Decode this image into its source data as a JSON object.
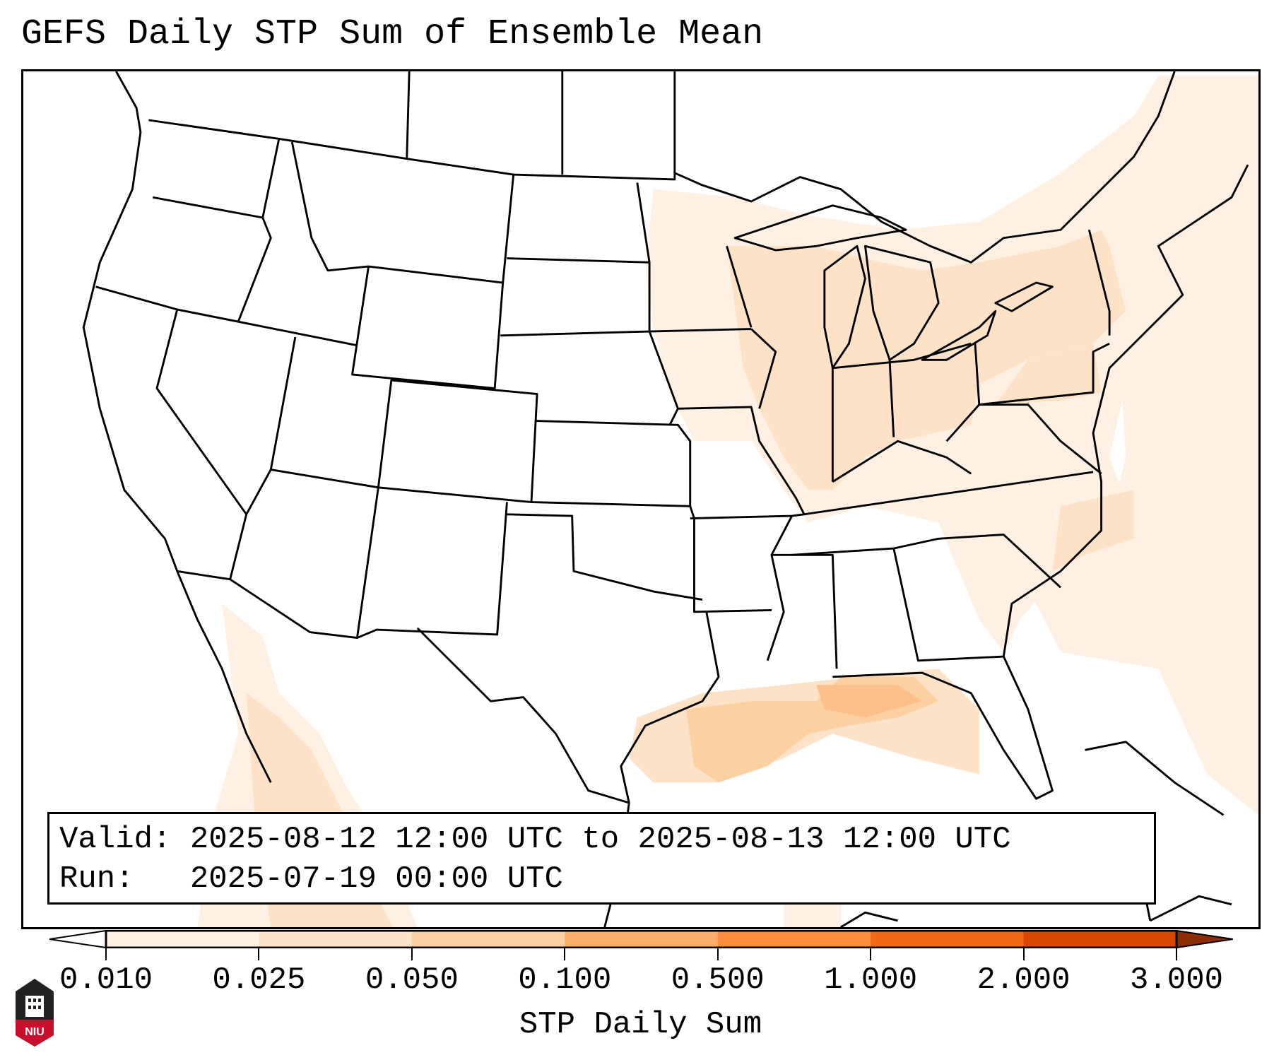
{
  "title": "GEFS Daily STP Sum of Ensemble Mean",
  "info": {
    "valid_label": "Valid:",
    "valid_value": "2025-08-12 12:00 UTC to 2025-08-13 12:00 UTC",
    "run_label": "Run:",
    "run_value": "2025-07-19 00:00 UTC"
  },
  "colorbar": {
    "label": "STP Daily Sum",
    "ticks": [
      "0.010",
      "0.025",
      "0.050",
      "0.100",
      "0.500",
      "1.000",
      "2.000",
      "3.000"
    ],
    "colors": [
      "#fef0e3",
      "#fde2c8",
      "#fdd0a2",
      "#fdae6b",
      "#fd8d3c",
      "#f16913",
      "#d94801"
    ],
    "under_color": "#ffffff",
    "over_color": "#8c2d04"
  },
  "logo": {
    "text": "NIU"
  }
}
